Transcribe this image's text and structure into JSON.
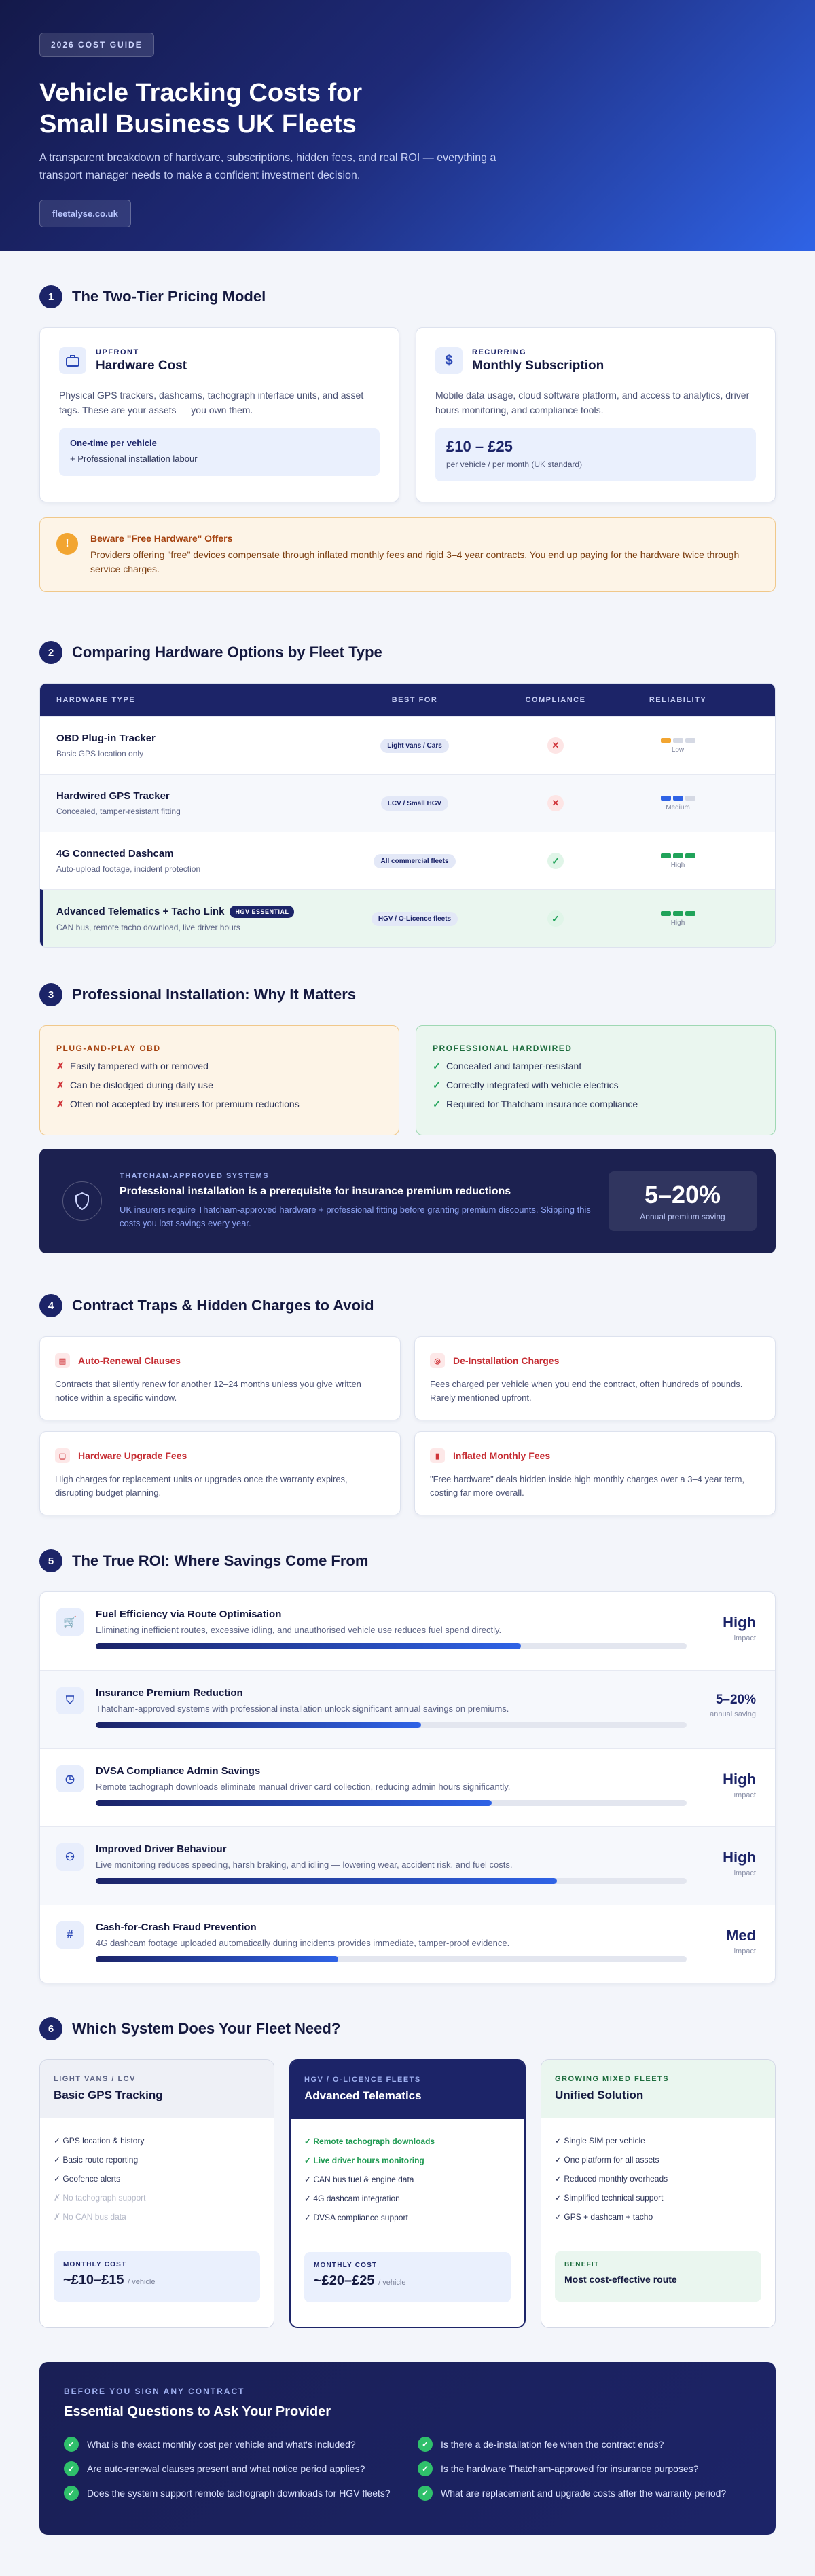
{
  "hero": {
    "badge": "2026 COST GUIDE",
    "title_line1": "Vehicle Tracking Costs for",
    "title_line2": "Small Business UK Fleets",
    "subtitle": "A transparent breakdown of hardware, subscriptions, hidden fees, and real ROI — everything a transport manager needs to make a confident investment decision.",
    "site": "fleetalyse.co.uk"
  },
  "s1": {
    "num": "1",
    "title": "The Two-Tier Pricing Model",
    "hardware": {
      "kicker": "UPFRONT",
      "title": "Hardware Cost",
      "desc": "Physical GPS trackers, dashcams, tachograph interface units, and asset tags. These are your assets — you own them.",
      "box_line1": "One-time per vehicle",
      "box_line2": "+ Professional installation labour"
    },
    "subscription": {
      "kicker": "RECURRING",
      "title": "Monthly Subscription",
      "desc": "Mobile data usage, cloud software platform, and access to analytics, driver hours monitoring, and compliance tools.",
      "price": "£10 – £25",
      "price_note": "per vehicle / per month (UK standard)"
    },
    "warning": {
      "title": "Beware \"Free Hardware\" Offers",
      "text": "Providers offering \"free\" devices compensate through inflated monthly fees and rigid 3–4 year contracts. You end up paying for the hardware twice through service charges."
    }
  },
  "s2": {
    "num": "2",
    "title": "Comparing Hardware Options by Fleet Type",
    "headers": [
      "HARDWARE TYPE",
      "BEST FOR",
      "COMPLIANCE",
      "RELIABILITY"
    ],
    "rows": [
      {
        "name": "OBD Plug-in Tracker",
        "sub": "Basic GPS location only",
        "best": "Light vans / Cars",
        "compliance": "✕",
        "reliability": "Low",
        "level": 1
      },
      {
        "name": "Hardwired GPS Tracker",
        "sub": "Concealed, tamper-resistant fitting",
        "best": "LCV / Small HGV",
        "compliance": "✕",
        "reliability": "Medium",
        "level": 2
      },
      {
        "name": "4G Connected Dashcam",
        "sub": "Auto-upload footage, incident protection",
        "best": "All commercial fleets",
        "compliance": "✓",
        "reliability": "High",
        "level": 3
      },
      {
        "name": "Advanced Telematics + Tacho Link",
        "badge": "HGV ESSENTIAL",
        "sub": "CAN bus, remote tacho download, live driver hours",
        "best": "HGV / O-Licence fleets",
        "compliance": "✓",
        "reliability": "High",
        "level": 3
      }
    ],
    "colors": {
      "low": "#f2a531",
      "medium": "#2f63e6",
      "high": "#21a35a"
    }
  },
  "s3": {
    "num": "3",
    "title": "Professional Installation: Why It Matters",
    "bad": {
      "title": "PLUG-AND-PLAY OBD",
      "items": [
        "Easily tampered with or removed",
        "Can be dislodged during daily use",
        "Often not accepted by insurers for premium reductions"
      ]
    },
    "good": {
      "title": "PROFESSIONAL HARDWIRED",
      "items": [
        "Concealed and tamper-resistant",
        "Correctly integrated with vehicle electrics",
        "Required for Thatcham insurance compliance"
      ]
    },
    "thatcham": {
      "kicker": "THATCHAM-APPROVED SYSTEMS",
      "title": "Professional installation is a prerequisite for insurance premium reductions",
      "desc": "UK insurers require Thatcham-approved hardware + professional fitting before granting premium discounts. Skipping this costs you lost savings every year.",
      "stat": "5–20%",
      "stat_label": "Annual premium saving"
    }
  },
  "s4": {
    "num": "4",
    "title": "Contract Traps & Hidden Charges to Avoid",
    "traps": [
      {
        "title": "Auto-Renewal Clauses",
        "text": "Contracts that silently renew for another 12–24 months unless you give written notice within a specific window."
      },
      {
        "title": "De-Installation Charges",
        "text": "Fees charged per vehicle when you end the contract, often hundreds of pounds. Rarely mentioned upfront."
      },
      {
        "title": "Hardware Upgrade Fees",
        "text": "High charges for replacement units or upgrades once the warranty expires, disrupting budget planning."
      },
      {
        "title": "Inflated Monthly Fees",
        "text": "\"Free hardware\" deals hidden inside high monthly charges over a 3–4 year term, costing far more overall."
      }
    ]
  },
  "s5": {
    "num": "5",
    "title": "The True ROI: Where Savings Come From",
    "rows": [
      {
        "title": "Fuel Efficiency via Route Optimisation",
        "desc": "Eliminating inefficient routes, excessive idling, and unauthorised vehicle use reduces fuel spend directly.",
        "value": "High",
        "label": "impact",
        "fill": 0.72
      },
      {
        "title": "Insurance Premium Reduction",
        "desc": "Thatcham-approved systems with professional installation unlock significant annual savings on premiums.",
        "value": "5–20%",
        "label": "annual saving",
        "fill": 0.55
      },
      {
        "title": "DVSA Compliance Admin Savings",
        "desc": "Remote tachograph downloads eliminate manual driver card collection, reducing admin hours significantly.",
        "value": "High",
        "label": "impact",
        "fill": 0.67
      },
      {
        "title": "Improved Driver Behaviour",
        "desc": "Live monitoring reduces speeding, harsh braking, and idling — lowering wear, accident risk, and fuel costs.",
        "value": "High",
        "label": "impact",
        "fill": 0.78
      },
      {
        "title": "Cash-for-Crash Fraud Prevention",
        "desc": "4G dashcam footage uploaded automatically during incidents provides immediate, tamper-proof evidence.",
        "value": "Med",
        "label": "impact",
        "fill": 0.41
      }
    ]
  },
  "s6": {
    "num": "6",
    "title": "Which System Does Your Fleet Need?",
    "cols": [
      {
        "kicker": "LIGHT VANS / LCV",
        "title": "Basic GPS Tracking",
        "items": [
          {
            "t": "✓ GPS location & history",
            "s": "normal"
          },
          {
            "t": "✓ Basic route reporting",
            "s": "normal"
          },
          {
            "t": "✓ Geofence alerts",
            "s": "normal"
          },
          {
            "t": "✗ No tachograph support",
            "s": "muted"
          },
          {
            "t": "✗ No CAN bus data",
            "s": "muted"
          }
        ],
        "foot_k": "MONTHLY COST",
        "foot_v": "~£10–£15",
        "foot_u": "/ vehicle"
      },
      {
        "kicker": "HGV / O-LICENCE FLEETS",
        "title": "Advanced Telematics",
        "items": [
          {
            "t": "✓ Remote tachograph downloads",
            "s": "green"
          },
          {
            "t": "✓ Live driver hours monitoring",
            "s": "green"
          },
          {
            "t": "✓ CAN bus fuel & engine data",
            "s": "normal"
          },
          {
            "t": "✓ 4G dashcam integration",
            "s": "normal"
          },
          {
            "t": "✓ DVSA compliance support",
            "s": "normal"
          }
        ],
        "foot_k": "MONTHLY COST",
        "foot_v": "~£20–£25",
        "foot_u": "/ vehicle"
      },
      {
        "kicker": "GROWING MIXED FLEETS",
        "title": "Unified Solution",
        "items": [
          {
            "t": "✓ Single SIM per vehicle",
            "s": "normal"
          },
          {
            "t": "✓ One platform for all assets",
            "s": "normal"
          },
          {
            "t": "✓ Reduced monthly overheads",
            "s": "normal"
          },
          {
            "t": "✓ Simplified technical support",
            "s": "normal"
          },
          {
            "t": "✓ GPS + dashcam + tacho",
            "s": "normal"
          }
        ],
        "foot_k": "BENEFIT",
        "foot_v2": "Most cost-effective route"
      }
    ]
  },
  "final": {
    "kicker": "BEFORE YOU SIGN ANY CONTRACT",
    "title": "Essential Questions to Ask Your Provider",
    "questions": [
      "What is the exact monthly cost per vehicle and what's included?",
      "Is there a de-installation fee when the contract ends?",
      "Are auto-renewal clauses present and what notice period applies?",
      "Is the hardware Thatcham-approved for insurance purposes?",
      "Does the system support remote tachograph downloads for HGV fleets?",
      "What are replacement and upgrade costs after the warranty period?"
    ]
  }
}
